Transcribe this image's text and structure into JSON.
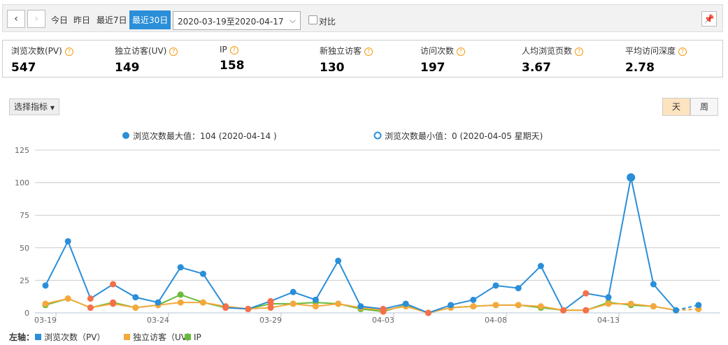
{
  "toolbar": {
    "prev": "‹",
    "next": "›",
    "today": "今日",
    "yesterday": "昨日",
    "last7": "最近7日",
    "last30": "最近30日",
    "date_range": "2020-03-19至2020-04-17",
    "compare": "对比",
    "pin_icon": "pin-icon"
  },
  "metrics": [
    {
      "label": "浏览次数(PV)",
      "value": "547"
    },
    {
      "label": "独立访客(UV)",
      "value": "149"
    },
    {
      "label": "IP",
      "value": "158"
    },
    {
      "label": "新独立访客",
      "value": "130"
    },
    {
      "label": "访问次数",
      "value": "197"
    },
    {
      "label": "人均浏览页数",
      "value": "3.67"
    },
    {
      "label": "平均访问深度",
      "value": "2.78"
    }
  ],
  "select_metric": "选择指标",
  "granularity": {
    "day": "天",
    "week": "周",
    "active": "天"
  },
  "chart_data": {
    "type": "line",
    "annotations": {
      "max": "浏览次数最大值：104 (2020-04-14 )",
      "min": "浏览次数最小值：0 (2020-04-05 星期天)"
    },
    "x": [
      "03-19",
      "03-20",
      "03-21",
      "03-22",
      "03-23",
      "03-24",
      "03-25",
      "03-26",
      "03-27",
      "03-28",
      "03-29",
      "03-30",
      "03-31",
      "04-01",
      "04-02",
      "04-03",
      "04-04",
      "04-05",
      "04-06",
      "04-07",
      "04-08",
      "04-09",
      "04-10",
      "04-11",
      "04-12",
      "04-13",
      "04-14",
      "04-15",
      "04-16",
      "04-17"
    ],
    "x_tick_labels": [
      "03-19",
      "03-24",
      "03-29",
      "04-03",
      "04-08",
      "04-13"
    ],
    "y_ticks": [
      0,
      25,
      50,
      75,
      100,
      125
    ],
    "ylim": [
      0,
      125
    ],
    "grid": true,
    "legend_title": "左轴：",
    "legend_position": "bottom-left",
    "weekend_highlight_color": "#f4704a",
    "series": [
      {
        "name": "浏览次数（PV）",
        "color": "#2a8ed8",
        "values": [
          21,
          55,
          11,
          22,
          12,
          8,
          35,
          30,
          4,
          3,
          9,
          16,
          10,
          40,
          5,
          3,
          7,
          0,
          6,
          10,
          21,
          19,
          36,
          2,
          15,
          12,
          104,
          22,
          2,
          6
        ]
      },
      {
        "name": "独立访客（UV）",
        "color": "#f5a93c",
        "values": [
          7,
          11,
          4,
          7,
          4,
          6,
          8,
          8,
          5,
          3,
          4,
          7,
          5,
          7,
          4,
          2,
          5,
          0,
          4,
          5,
          6,
          6,
          5,
          2,
          2,
          7,
          7,
          5,
          2,
          3
        ]
      },
      {
        "name": "IP",
        "color": "#6aba3a",
        "values": [
          6,
          11,
          4,
          8,
          4,
          6,
          14,
          8,
          4,
          3,
          7,
          7,
          8,
          7,
          3,
          1,
          6,
          0,
          4,
          5,
          6,
          6,
          4,
          2,
          2,
          8,
          6,
          5,
          2,
          3
        ]
      }
    ]
  }
}
